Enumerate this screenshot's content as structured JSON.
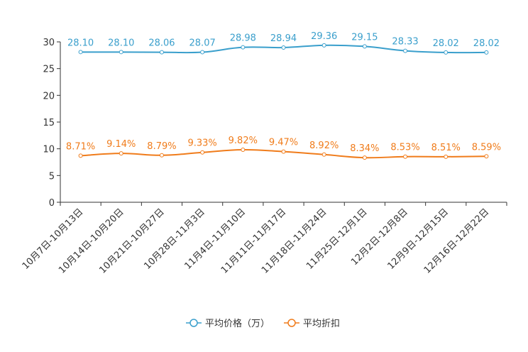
{
  "chart_data": {
    "type": "line",
    "categories": [
      "10月7日-10月13日",
      "10月14日-10月20日",
      "10月21日-10月27日",
      "10月28日-11月3日",
      "11月4日-11月10日",
      "11月11日-11月17日",
      "11月18日-11月24日",
      "11月25日-12月1日",
      "12月2日-12月8日",
      "12月9日-12月15日",
      "12月16日-12月22日"
    ],
    "ylim": [
      0,
      30
    ],
    "yticks": [
      0,
      5,
      10,
      15,
      20,
      25,
      30
    ],
    "grid": false,
    "legend_position": "bottom-center",
    "series": [
      {
        "name": "平均价格（万）",
        "color": "#3a9fcc",
        "values": [
          28.1,
          28.1,
          28.06,
          28.07,
          28.98,
          28.94,
          29.36,
          29.15,
          28.33,
          28.02,
          28.02
        ],
        "labels": [
          "28.10",
          "28.10",
          "28.06",
          "28.07",
          "28.98",
          "28.94",
          "29.36",
          "29.15",
          "28.33",
          "28.02",
          "28.02"
        ]
      },
      {
        "name": "平均折扣",
        "color": "#f07c1b",
        "values": [
          8.71,
          9.14,
          8.79,
          9.33,
          9.82,
          9.47,
          8.92,
          8.34,
          8.53,
          8.51,
          8.59
        ],
        "labels": [
          "8.71%",
          "9.14%",
          "8.79%",
          "9.33%",
          "9.82%",
          "9.47%",
          "8.92%",
          "8.34%",
          "8.53%",
          "8.51%",
          "8.59%"
        ]
      }
    ]
  }
}
